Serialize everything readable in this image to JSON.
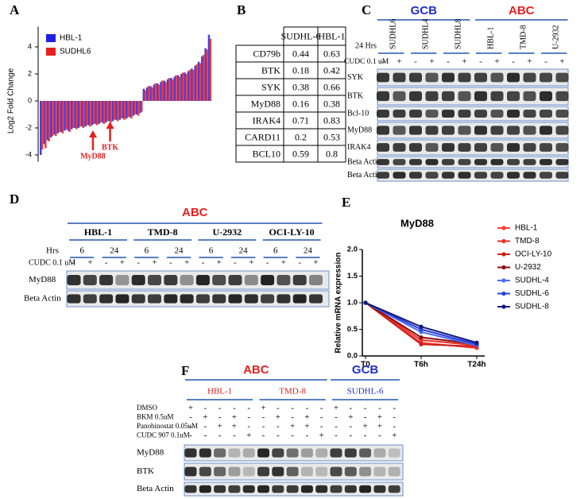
{
  "panel_labels": [
    "A",
    "B",
    "C",
    "D",
    "E",
    "F"
  ],
  "chart_data": [
    {
      "type": "bar",
      "ylabel": "Log2 Fold Change",
      "categories": [
        null,
        null,
        null,
        null,
        null,
        null,
        null,
        null,
        null,
        null,
        null,
        null,
        null,
        null,
        null,
        null,
        null,
        null,
        null,
        null,
        null,
        null,
        null,
        null,
        null,
        null,
        null,
        null,
        null,
        null,
        null,
        null,
        null,
        null,
        null,
        null,
        null,
        null,
        null,
        null,
        null,
        null,
        null,
        null,
        null,
        null,
        null,
        null,
        null,
        null
      ],
      "series": [
        {
          "name": "HBL-1",
          "color": "#1f1fe6",
          "values": [
            -4.0,
            -3.2,
            -2.9,
            -2.7,
            -2.5,
            -2.4,
            -2.3,
            -2.2,
            -2.2,
            -2.1,
            -2.0,
            -2.0,
            -1.9,
            -1.9,
            -1.8,
            -1.8,
            -1.7,
            -1.7,
            -1.6,
            -1.6,
            -1.5,
            -1.5,
            -1.4,
            -1.4,
            -1.3,
            -1.3,
            -1.2,
            -1.1,
            -1.0,
            -0.9,
            0.9,
            1.0,
            1.1,
            1.2,
            1.3,
            1.4,
            1.5,
            1.6,
            1.7,
            1.8,
            1.9,
            2.0,
            2.1,
            2.2,
            2.4,
            2.6,
            2.9,
            3.3,
            3.9,
            4.9
          ]
        },
        {
          "name": "SUDHL6",
          "color": "#e61f1f",
          "values": [
            -3.6,
            -3.5,
            -3.0,
            -2.6,
            -2.6,
            -2.3,
            -2.4,
            -2.1,
            -2.3,
            -2.0,
            -2.1,
            -1.9,
            -2.0,
            -1.8,
            -1.9,
            -1.7,
            -1.8,
            -1.6,
            -1.7,
            -1.5,
            -1.6,
            -1.4,
            -1.5,
            -1.3,
            -1.4,
            -1.2,
            -1.3,
            -1.0,
            -1.1,
            -0.8,
            0.8,
            1.1,
            1.0,
            1.3,
            1.2,
            1.5,
            1.4,
            1.7,
            1.6,
            1.9,
            1.8,
            2.1,
            2.0,
            2.3,
            2.3,
            2.7,
            2.8,
            3.4,
            3.8,
            4.6
          ]
        }
      ],
      "ylim": [
        -4.5,
        5.5
      ],
      "yticks": [
        -4,
        -2,
        0,
        2,
        4
      ],
      "legend": "top-left",
      "annotations": [
        "MyD88",
        "BTK"
      ],
      "annotation_color": "#e61f1f"
    },
    {
      "type": "line",
      "title": "MyD88",
      "ylabel": "Relative mRNA expression",
      "categories": [
        "T0",
        "T6h",
        "T24h"
      ],
      "series": [
        {
          "name": "HBL-1",
          "color": "#ff3b30",
          "values": [
            1.0,
            0.25,
            0.15
          ]
        },
        {
          "name": "TMD-8",
          "color": "#e8302a",
          "values": [
            1.0,
            0.3,
            0.2
          ]
        },
        {
          "name": "OCI-LY-10",
          "color": "#cc1f1a",
          "values": [
            1.0,
            0.22,
            0.18
          ]
        },
        {
          "name": "U-2932",
          "color": "#8b0f10",
          "values": [
            1.0,
            0.35,
            0.22
          ]
        },
        {
          "name": "SUDHL-4",
          "color": "#4a6cf0",
          "values": [
            1.0,
            0.45,
            0.2
          ]
        },
        {
          "name": "SUDHL-6",
          "color": "#2a3fd6",
          "values": [
            1.0,
            0.5,
            0.22
          ]
        },
        {
          "name": "SUDHL-8",
          "color": "#121a80",
          "values": [
            1.0,
            0.55,
            0.25
          ]
        }
      ],
      "ylim": [
        0,
        2
      ],
      "yticks": [
        {
          "value": 0,
          "label": "0.0"
        },
        0.5,
        {
          "value": 1,
          "label": "1.0"
        },
        1.5,
        {
          "value": 2,
          "label": "2.0"
        }
      ],
      "legend": "right"
    }
  ],
  "table": {
    "columns": [
      "SUDHL-6",
      "HBL-1"
    ],
    "rows": [
      [
        "CD79b",
        0.44,
        0.63
      ],
      [
        "BTK",
        0.18,
        0.42
      ],
      [
        "SYK",
        0.38,
        0.66
      ],
      [
        "MyD88",
        0.16,
        0.38
      ],
      [
        "IRAK4",
        0.71,
        0.83
      ],
      [
        "CARD11",
        0.2,
        0.53
      ],
      [
        "BCL10",
        0.59,
        0.8
      ]
    ]
  },
  "blot_c": {
    "groups": [
      {
        "name": "GCB",
        "color": "#1f2fd0",
        "lines": [
          "SUDHL6",
          "SUDHL4",
          "SUDHL8"
        ]
      },
      {
        "name": "ABC",
        "color": "#e61f1f",
        "lines": [
          "HBL-1",
          "TMD-8",
          "U-2932"
        ]
      }
    ],
    "time_label": "24 Hrs",
    "treatment_label": "CUDC 0.1 uM",
    "signs": [
      "-",
      "+",
      "-",
      "+",
      "-",
      "+",
      "-",
      "+",
      "-",
      "+",
      "-",
      "+"
    ],
    "rows": [
      "SYK",
      "BTK",
      "Bcl-10",
      "MyD88",
      "IRAK4",
      "Beta Actin",
      "Beta Actin"
    ]
  },
  "blot_d": {
    "group": "ABC",
    "group_color": "#e61f1f",
    "lines": [
      "HBL-1",
      "TMD-8",
      "U-2932",
      "OCI-LY-10"
    ],
    "time_label": "Hrs",
    "times": [
      6,
      24,
      6,
      24,
      6,
      24,
      6,
      24
    ],
    "treatment_label": "CUDC 0.1 uM",
    "signs": [
      "-",
      "+",
      "-",
      "+",
      "-",
      "+",
      "-",
      "+",
      "-",
      "+",
      "-",
      "+",
      "-",
      "+",
      "-",
      "+"
    ],
    "rows": [
      "MyD88",
      "Beta Actin"
    ]
  },
  "blot_f": {
    "groups": [
      {
        "name": "ABC",
        "color": "#e61f1f",
        "lines": [
          "HBL-1",
          "TMD-8"
        ]
      },
      {
        "name": "GCB",
        "color": "#1f2fd0",
        "lines": [
          "SUDHL-6"
        ]
      }
    ],
    "treatments": [
      {
        "name": "DMSO",
        "signs": [
          "+",
          "-",
          "-",
          "-",
          "-",
          "+",
          "-",
          "-",
          "-",
          "-",
          "+",
          "-",
          "-",
          "-",
          "-"
        ]
      },
      {
        "name": "BKM 0.5uM",
        "signs": [
          "-",
          "+",
          "-",
          "+",
          "-",
          "-",
          "+",
          "-",
          "+",
          "-",
          "-",
          "+",
          "-",
          "+",
          "-"
        ]
      },
      {
        "name": "Panobinostat 0.05uM",
        "signs": [
          "-",
          "-",
          "+",
          "+",
          "-",
          "-",
          "-",
          "+",
          "+",
          "-",
          "-",
          "-",
          "+",
          "+",
          "-"
        ]
      },
      {
        "name": "CUDC 907 0.1uM",
        "signs": [
          "-",
          "-",
          "-",
          "-",
          "+",
          "-",
          "-",
          "-",
          "-",
          "+",
          "-",
          "-",
          "-",
          "-",
          "+"
        ]
      }
    ],
    "rows": [
      "MyD88",
      "BTK",
      "Beta Actin"
    ]
  }
}
